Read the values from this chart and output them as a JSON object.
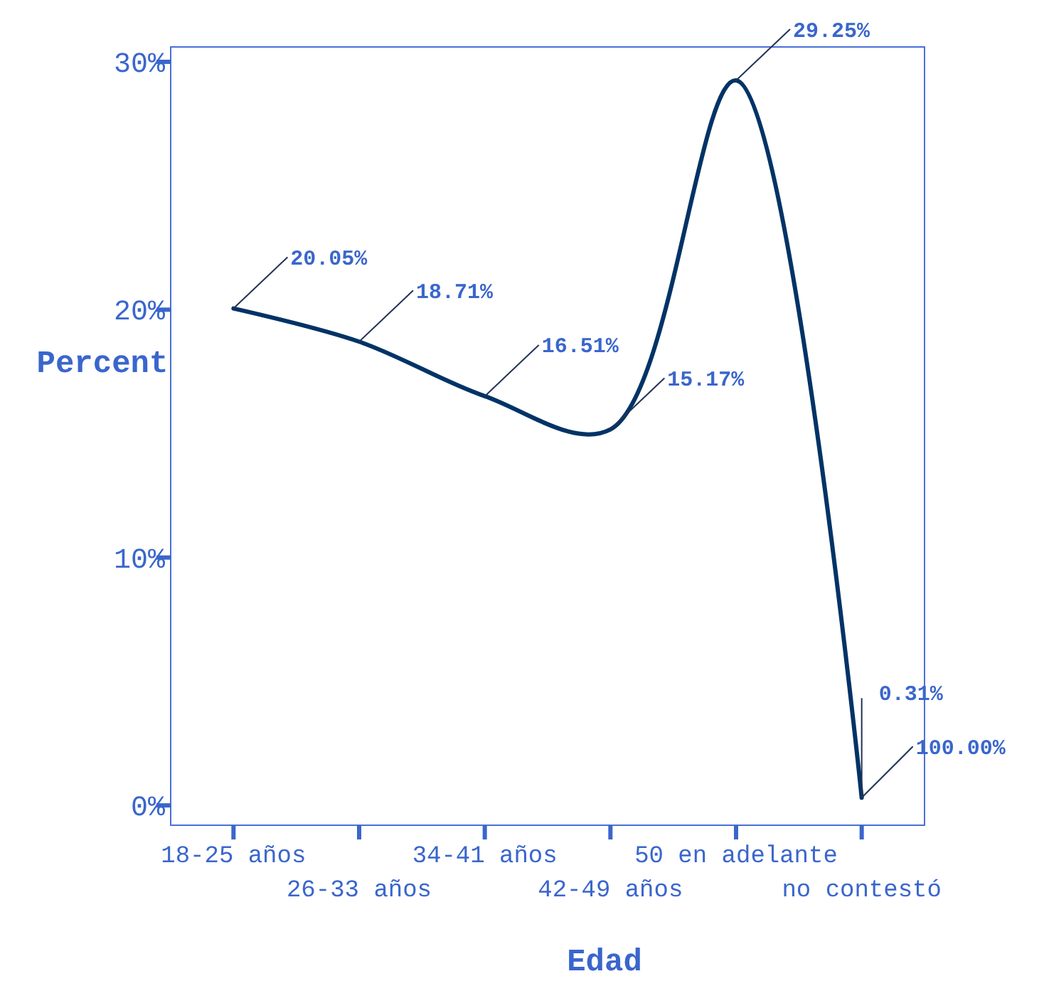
{
  "chart_data": {
    "type": "line",
    "xlabel": "Edad",
    "ylabel": "Percent",
    "categories": [
      "18-25 años",
      "26-33 años",
      "34-41 años",
      "42-49 años",
      "50 en adelante",
      "no contestó"
    ],
    "series": [
      {
        "color": "#003366",
        "values": [
          20.05,
          18.71,
          16.51,
          15.17,
          29.25,
          0.31
        ],
        "value_labels": [
          "20.05%",
          "18.71%",
          "16.51%",
          "15.17%",
          "29.25%",
          "0.31%"
        ]
      }
    ],
    "annotations": [
      {
        "text": "100.00%",
        "x": "no contestó",
        "y": 0.31
      }
    ],
    "ylim": [
      -0.8,
      30.6
    ],
    "yticks": [
      {
        "value": 0,
        "label": "0%"
      },
      {
        "value": 10,
        "label": "10%"
      },
      {
        "value": 20,
        "label": "20%"
      },
      {
        "value": 30,
        "label": "30%"
      }
    ],
    "grid": false,
    "marker": "none",
    "line_style": "solid"
  }
}
